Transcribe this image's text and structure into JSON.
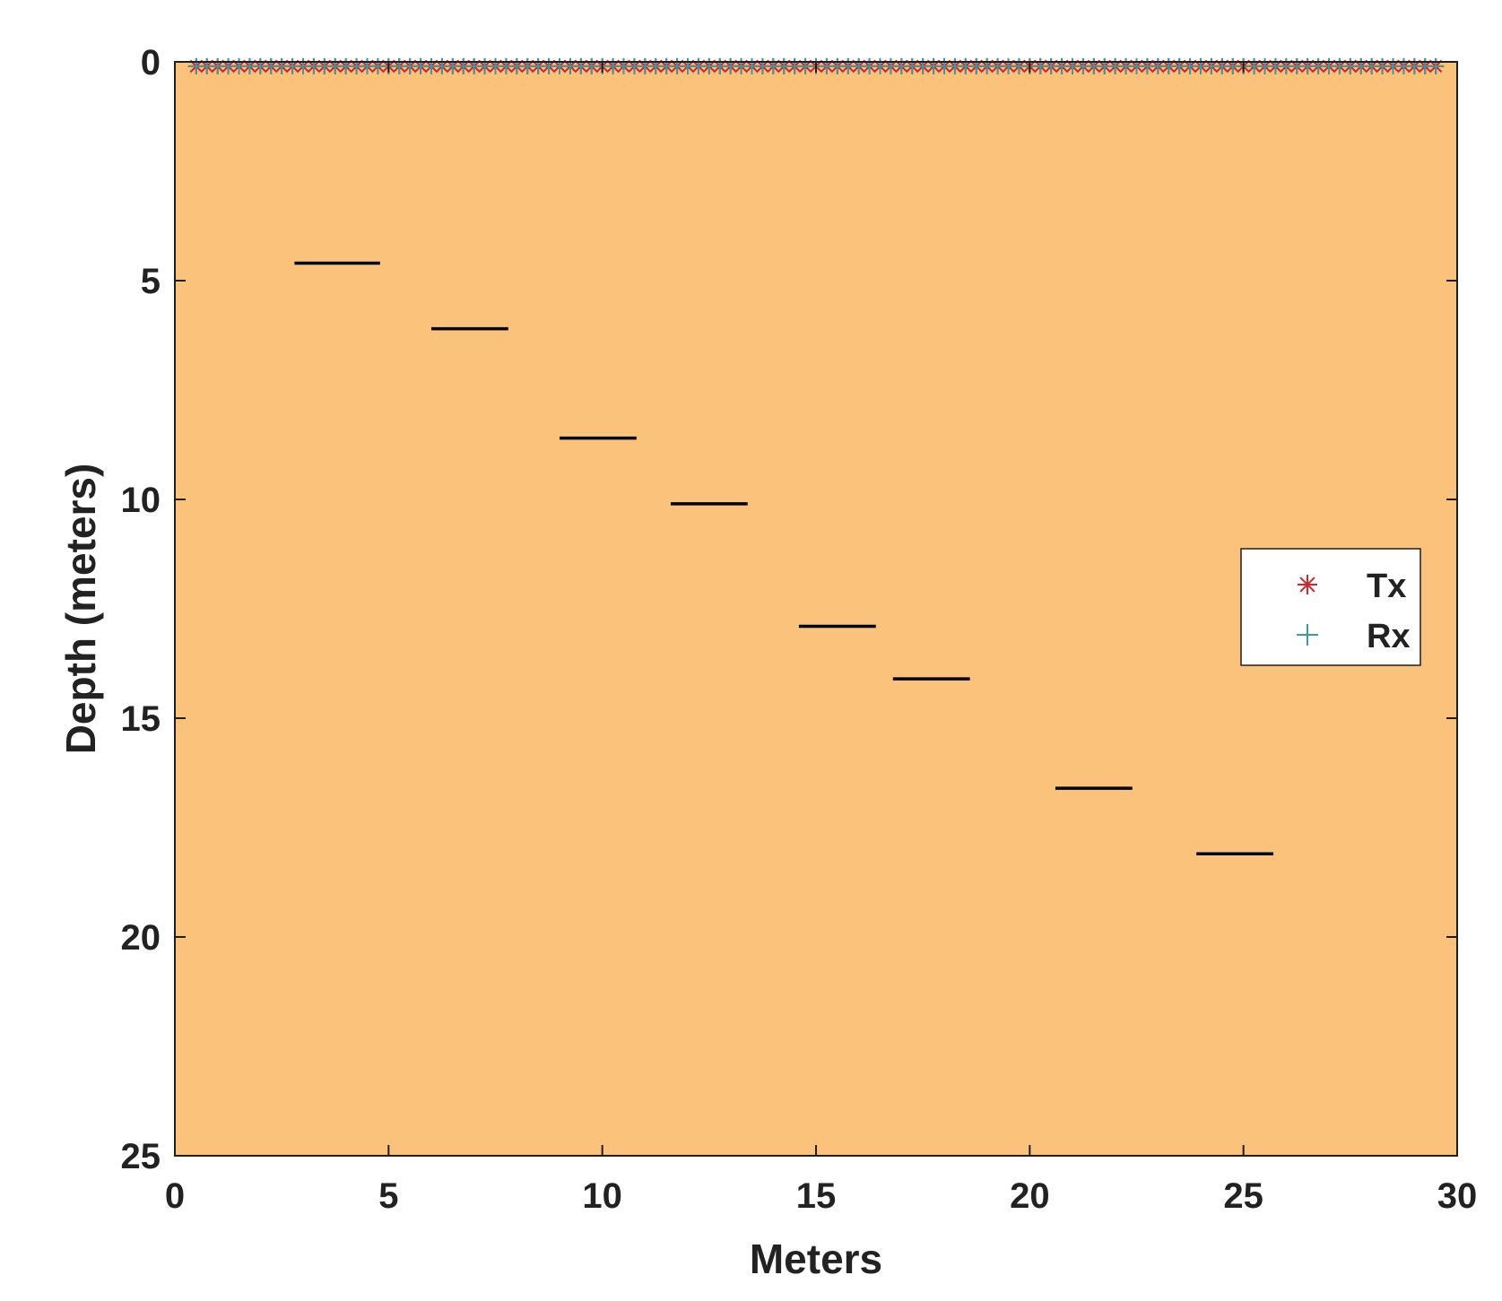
{
  "colors": {
    "background": "#ffffff",
    "plot_fill": "#fbc27c",
    "axis": "#1e1e1e",
    "reflector": "#000000",
    "tx": "#d4232a",
    "rx": "#3a9aa8",
    "legend_bg": "#ffffff"
  },
  "chart_data": {
    "type": "scatter",
    "title": "",
    "xlabel": "Meters",
    "ylabel": "Depth (meters)",
    "xlim": [
      0,
      30
    ],
    "ylim": [
      0,
      25
    ],
    "y_reversed": true,
    "grid": false,
    "x_ticks": [
      0,
      5,
      10,
      15,
      20,
      25,
      30
    ],
    "y_ticks": [
      0,
      5,
      10,
      15,
      20,
      25
    ],
    "legend": {
      "placement": "right",
      "entries": [
        {
          "label": "Tx",
          "marker": "asterisk",
          "color": "#d4232a"
        },
        {
          "label": "Rx",
          "marker": "plus",
          "color": "#3a9aa8"
        }
      ]
    },
    "series": [
      {
        "name": "Tx",
        "marker": "asterisk",
        "y": 0.1,
        "x_start": 0.5,
        "x_end": 29.5,
        "x_step": 0.25
      },
      {
        "name": "Rx",
        "marker": "plus",
        "y": 0.1,
        "x_start": 0.5,
        "x_end": 29.5,
        "x_step": 0.25
      }
    ],
    "reflectors": [
      {
        "x_start": 2.8,
        "x_end": 4.8,
        "depth": 4.6
      },
      {
        "x_start": 6.0,
        "x_end": 7.8,
        "depth": 6.1
      },
      {
        "x_start": 9.0,
        "x_end": 10.8,
        "depth": 8.6
      },
      {
        "x_start": 11.6,
        "x_end": 13.4,
        "depth": 10.1
      },
      {
        "x_start": 14.6,
        "x_end": 16.4,
        "depth": 12.9
      },
      {
        "x_start": 16.8,
        "x_end": 18.6,
        "depth": 14.1
      },
      {
        "x_start": 20.6,
        "x_end": 22.4,
        "depth": 16.6
      },
      {
        "x_start": 23.9,
        "x_end": 25.7,
        "depth": 18.1
      }
    ]
  }
}
